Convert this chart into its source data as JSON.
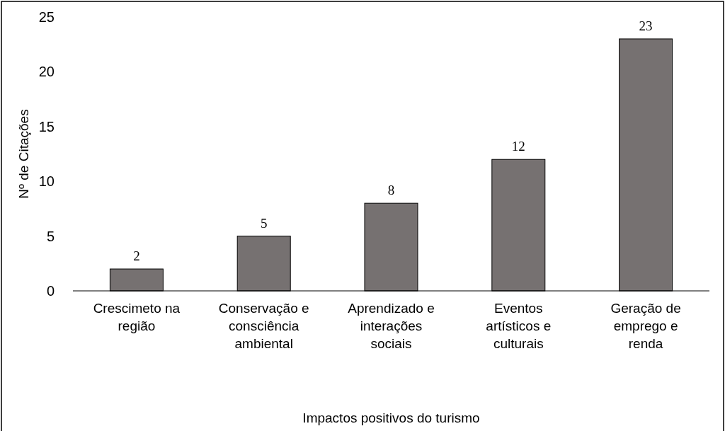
{
  "chart_data": {
    "type": "bar",
    "xlabel": "Impactos positivos do turismo",
    "ylabel": "Nº de Citações",
    "categories": [
      "Crescimeto na região",
      "Conservação e consciência ambiental",
      "Aprendizado e interações sociais",
      "Eventos artísticos e culturais",
      "Geração de emprego e renda"
    ],
    "values": [
      2,
      5,
      8,
      12,
      23
    ],
    "color": "#767171",
    "ylim": [
      0,
      25
    ],
    "yticks": [
      0,
      5,
      10,
      15,
      20,
      25
    ],
    "data_labels": true,
    "grid": false
  }
}
